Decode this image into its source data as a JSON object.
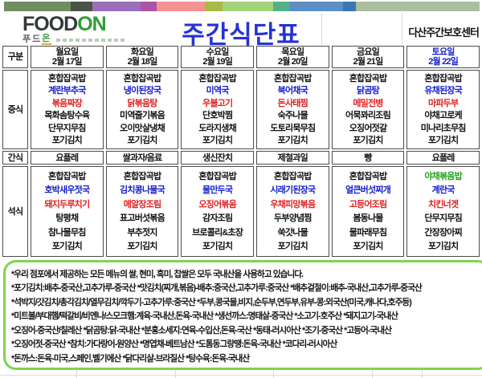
{
  "brand": {
    "logo_primary": "FOOD",
    "logo_accent": "ON",
    "logo_sub_primary": "푸드",
    "logo_sub_accent": "온"
  },
  "header": {
    "title": "주간식단표",
    "center_name": "다산주간보호센터"
  },
  "colors": {
    "title": "#2433d6",
    "soup_blue": "#1520cf",
    "main_red": "#e02020",
    "special_green": "#1ca51c",
    "notes_border": "#80d44a",
    "topbar": [
      "#6f8f62",
      "#4a5548",
      "#9a6fb8",
      "#a855aa",
      "#f49392",
      "#a9b945",
      "#a4d37a",
      "#52b18b",
      "#5d8fc4",
      "#3d77b2",
      "#a9bfa0"
    ],
    "topbar_widths": [
      83,
      27,
      60,
      20,
      60,
      22,
      63,
      20,
      67,
      16,
      154
    ]
  },
  "table": {
    "corner_label": "구분",
    "row_labels": {
      "lunch": "중식",
      "snack": "간식",
      "dinner": "석식"
    },
    "day_keys": [
      "mon",
      "tue",
      "wed",
      "thu",
      "fri",
      "sat"
    ],
    "days": [
      {
        "day": "월요일",
        "date": "2월 17일",
        "highlight": false
      },
      {
        "day": "화요일",
        "date": "2월 18일",
        "highlight": false
      },
      {
        "day": "수요일",
        "date": "2월 19일",
        "highlight": false
      },
      {
        "day": "목요일",
        "date": "2월 20일",
        "highlight": false
      },
      {
        "day": "금요일",
        "date": "2월 21일",
        "highlight": false
      },
      {
        "day": "토요일",
        "date": "2월 22일",
        "highlight": true
      }
    ],
    "row_color_roles": [
      "black",
      "blue",
      "red",
      "black",
      "black",
      "black"
    ],
    "lunch": [
      [
        "혼합잡곡밥",
        "계란부추국",
        "볶음짜장",
        "목화솜탕수육",
        "단무지무침",
        "포기김치"
      ],
      [
        "혼합잡곡밥",
        "냉이된장국",
        "닭볶음탕",
        "미역줄기볶음",
        "오이맛살냉채",
        "포기김치"
      ],
      [
        "혼합잡곡밥",
        "미역국",
        "우불고기",
        "단호박찜",
        "도라지생채",
        "포기김치"
      ],
      [
        "혼합잡곡밥",
        "북어채국",
        "돈사태찜",
        "숙주나물",
        "도토리묵무침",
        "포기김치"
      ],
      [
        "혼합잡곡밥",
        "닭곰탕",
        "메밀전병",
        "어묵꽈리조림",
        "오징어젓갈",
        "포기김치"
      ],
      [
        "혼합잡곡밥",
        "유채된장국",
        "마파두부",
        "야채고로케",
        "미나리초무침",
        "포기김치"
      ]
    ],
    "snack": [
      "요플레",
      "쌀과자/음료",
      "생신잔치",
      "제철과일",
      "빵",
      "요플레"
    ],
    "dinner": [
      [
        "혼합잡곡밥",
        "호박새우젓국",
        "돼지두루치기",
        "탕평채",
        "참나물무침",
        "포기김치"
      ],
      [
        "혼합잡곡밥",
        "김치콩나물국",
        "메알장조림",
        "표고버섯볶음",
        "부추젓지",
        "포기김치"
      ],
      [
        "혼합잡곡밥",
        "물만두국",
        "오징어볶음",
        "감자조림",
        "브로콜리&초장",
        "포기김치"
      ],
      [
        "혼합잡곡밥",
        "시래기된장국",
        "우채피망볶음",
        "두부양념찜",
        "쑥갓나물",
        "포기김치"
      ],
      [
        "혼합잡곡밥",
        "얼큰버섯찌개",
        "고등어조림",
        "봄동나물",
        "물파래무침",
        "포기김치"
      ],
      [
        "야채볶음밥",
        "계란국",
        "치킨너겟",
        "단무지무침",
        "간장장아찌",
        "포기김치"
      ]
    ],
    "dinner_special_green": {
      "col": 5,
      "row": 0
    }
  },
  "notes": [
    "*우리 점포에서 제공하는 모든 메뉴의 쌀, 현미, 흑미, 찹쌀은 모두 국내산을 사용하고 있습니다.",
    "*포기김치:배추-중국산,고추가루-중국산  *맛김치(찌개,볶음)-배추:중국산,고추가루:중국산  *배추겉절이:배추-국내산,고추가루-중국산",
    "*석박지/갓김치/총각김치/열무김치/깍두기-고추가루:중국산  *두부,콩국물,비지,순두부,연두부,유부-콩:외국산(미국,캐나다,호주등)",
    "*미트볼/부대햄/떡갈비/비엔나/스모크햄:계육-국내산,돈육-국내산  *생선까스:명태살-중국산  *소고기-호주산  *돼지고기-국내산",
    "*오징어-중국산/칠레산  *닭곰탕:닭-국내산  *분홍소세지:연육-수입산,돈육-국산  *동태-러시아산  *조기-중국산  *고등어-국내산",
    "*오징어젓-중국산  *참치:가다랑어-원양산  *명엽채-베트남산  *도톰동그랑땡:돈육-국내산  *코다리-러시아산",
    "*돈까스:돈육-미국,스페인,벨기에산  *닭다리살-브라질산  *탕수육:돈육-국내산"
  ]
}
